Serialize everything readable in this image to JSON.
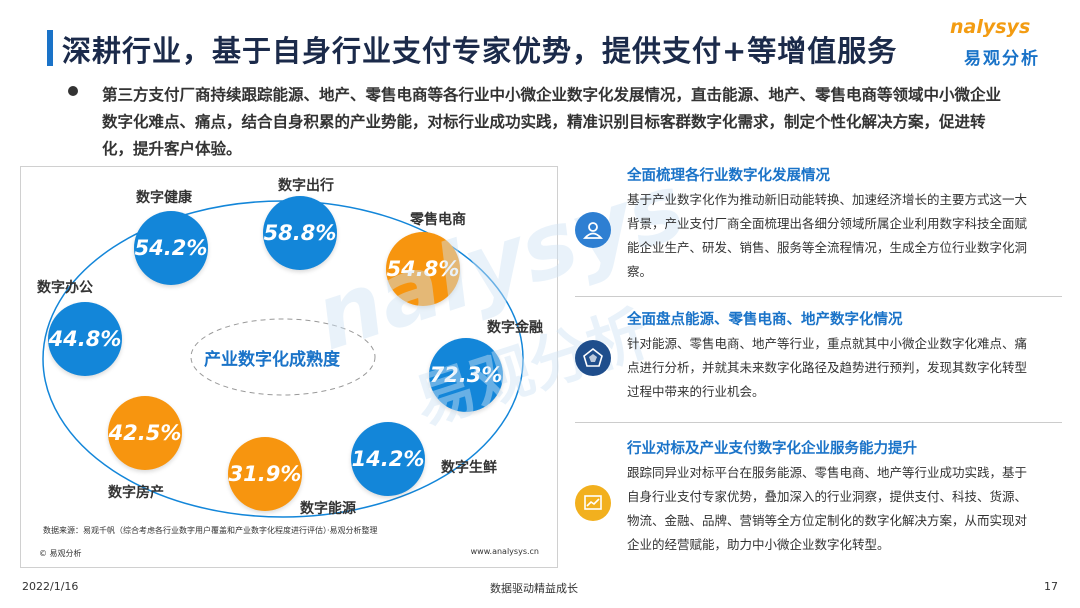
{
  "header": {
    "title": "深耕行业，基于自身行业支付专家优势，提供支付+等增值服务",
    "logo_word": "nalysys",
    "logo_cn": "易观分析"
  },
  "intro": "第三方支付厂商持续跟踪能源、地产、零售电商等各行业中小微企业数字化发展情况，直击能源、地产、零售电商等领域中小微企业数字化难点、痛点，结合自身积累的产业势能，对标行业成功实践，精准识别目标客群数字化需求，制定个性化解决方案，促进转化，提升客户体验。",
  "chart": {
    "center_label": "产业数字化成熟度",
    "source": "数据来源：易观千帆（综合考虑各行业数字用户覆盖和产业数字化程度进行评估）·易观分析整理",
    "copyright": "© 易观分析",
    "website": "www.analysys.cn",
    "colors": {
      "blue": "#1386d9",
      "orange": "#f7950f"
    }
  },
  "chart_data": {
    "type": "bubble",
    "title": "产业数字化成熟度",
    "categories": [
      "数字健康",
      "数字出行",
      "零售电商",
      "数字金融",
      "数字生鲜",
      "数字能源",
      "数字房产",
      "数字办公"
    ],
    "values": [
      54.2,
      58.8,
      54.8,
      72.3,
      14.2,
      31.9,
      42.5,
      44.8
    ],
    "value_labels": [
      "54.2%",
      "58.8%",
      "54.8%",
      "72.3%",
      "14.2%",
      "31.9%",
      "42.5%",
      "44.8%"
    ],
    "colors": [
      "blue",
      "blue",
      "orange",
      "blue",
      "blue",
      "orange",
      "orange",
      "blue"
    ]
  },
  "sections": [
    {
      "title": "全面梳理各行业数字化发展情况",
      "body": "基于产业数字化作为推动新旧动能转换、加速经济增长的主要方式这一大背景，产业支付厂商全面梳理出各细分领域所属企业利用数字科技全面赋能企业生产、研发、销售、服务等全流程情况，生成全方位行业数字化洞察。",
      "icon": "person-icon",
      "icon_color": "#2e7fd2"
    },
    {
      "title": "全面盘点能源、零售电商、地产数字化情况",
      "body": "针对能源、零售电商、地产等行业，重点就其中小微企业数字化难点、痛点进行分析，并就其未来数字化路径及趋势进行预判，发现其数字化转型过程中带来的行业机会。",
      "icon": "pentagon-chart-icon",
      "icon_color": "#1f4e8c"
    },
    {
      "title": "行业对标及产业支付数字化企业服务能力提升",
      "body": "跟踪同异业对标平台在服务能源、零售电商、地产等行业成功实践，基于自身行业支付专家优势，叠加深入的行业洞察，提供支付、科技、货源、物流、金融、品牌、营销等全方位定制化的数字化解决方案，从而实现对企业的经营赋能，助力中小微企业数字化转型。",
      "icon": "trend-chart-icon",
      "icon_color": "#f2b01e"
    }
  ],
  "footer": {
    "date": "2022/1/16",
    "slogan": "数据驱动精益成长",
    "page": "17"
  }
}
